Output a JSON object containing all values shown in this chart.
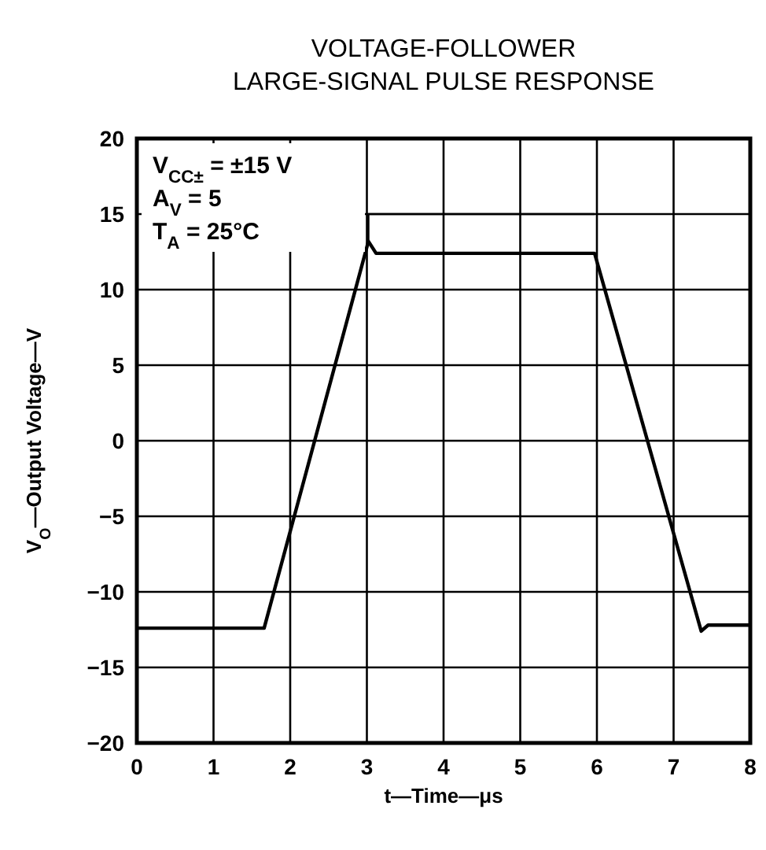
{
  "chart_data": {
    "type": "line",
    "title": "VOLTAGE-FOLLOWER\nLARGE-SIGNAL PULSE RESPONSE",
    "xlabel": "t—Time—μs",
    "ylabel": "V$_{O}$—Output Voltage—V",
    "series": [
      {
        "color": "#000000",
        "x": [
          0,
          1.66,
          3.02,
          3.12,
          5.97,
          7.36,
          7.45,
          8
        ],
        "values": [
          -12.4,
          -12.4,
          13.2,
          12.4,
          12.4,
          -12.6,
          -12.2,
          -12.2
        ]
      },
      {
        "color": "#000000",
        "x": [
          3.02,
          3.02,
          5.97
        ],
        "values": [
          13.2,
          15,
          15
        ]
      }
    ],
    "xlim": [
      0,
      8
    ],
    "xticks": [
      0,
      1,
      2,
      3,
      4,
      5,
      6,
      7,
      8
    ],
    "ylim": [
      -20,
      20
    ],
    "yticks": [
      -20,
      -15,
      -10,
      -5,
      0,
      5,
      10,
      15,
      20
    ],
    "grid": true,
    "line_style": "solid",
    "marker": "none",
    "annotations": [
      "V$_{CC±}$ = ±15 V",
      "A$_{V}$ = 5",
      "T$_{A}$ = 25°C"
    ]
  }
}
